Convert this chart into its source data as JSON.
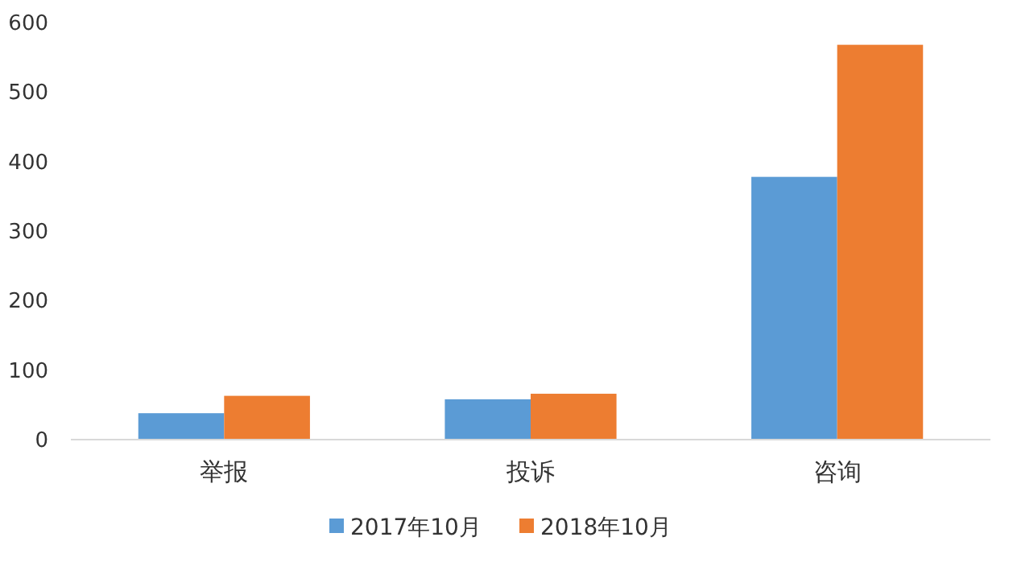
{
  "chart_data": {
    "type": "bar",
    "categories": [
      "举报",
      "投诉",
      "咨询"
    ],
    "series": [
      {
        "name": "2017年10月",
        "color": "#5b9bd5",
        "values": [
          38,
          58,
          378
        ]
      },
      {
        "name": "2018年10月",
        "color": "#ed7d31",
        "values": [
          63,
          66,
          568
        ]
      }
    ],
    "ylim": [
      0,
      600
    ],
    "yticks": [
      0,
      100,
      200,
      300,
      400,
      500,
      600
    ],
    "grid": false,
    "legend": "bottom"
  }
}
